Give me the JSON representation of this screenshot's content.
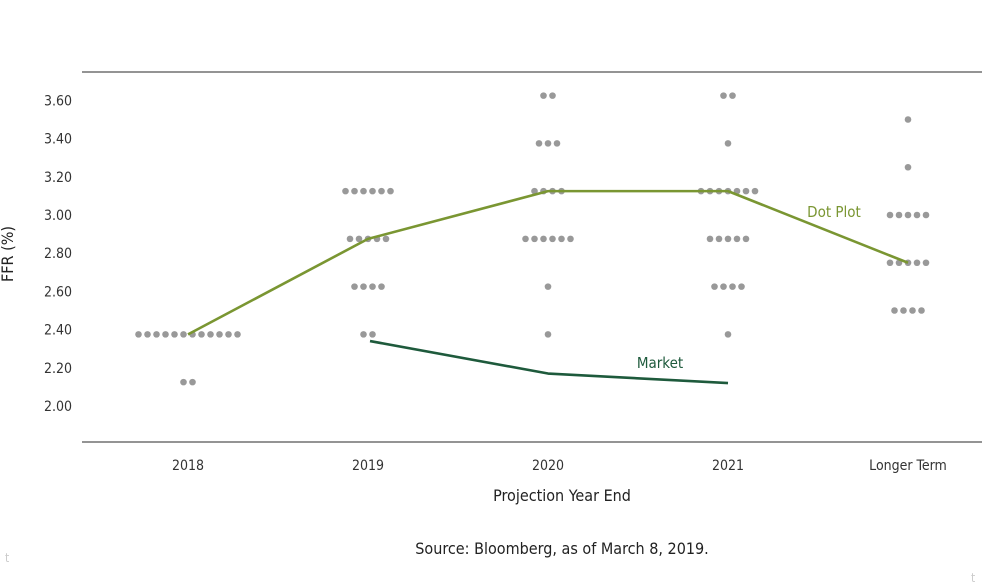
{
  "chart_data": {
    "type": "scatter",
    "title": "",
    "xlabel": "Projection Year End",
    "ylabel": "FFR (%)",
    "categories": [
      "2018",
      "2019",
      "2020",
      "2021",
      "Longer Term"
    ],
    "y_ticks": [
      "3.60",
      "3.40",
      "3.20",
      "3.00",
      "2.80",
      "2.60",
      "2.40",
      "2.20",
      "2.00"
    ],
    "ylim": [
      1.8,
      3.75
    ],
    "grid": false,
    "dots": [
      {
        "category": "2018",
        "levels": [
          {
            "y": 2.375,
            "count": 12
          },
          {
            "y": 2.125,
            "count": 2
          }
        ]
      },
      {
        "category": "2019",
        "levels": [
          {
            "y": 3.125,
            "count": 6
          },
          {
            "y": 2.875,
            "count": 5
          },
          {
            "y": 2.625,
            "count": 4
          },
          {
            "y": 2.375,
            "count": 2
          }
        ]
      },
      {
        "category": "2020",
        "levels": [
          {
            "y": 3.625,
            "count": 2
          },
          {
            "y": 3.375,
            "count": 3
          },
          {
            "y": 3.125,
            "count": 4
          },
          {
            "y": 2.875,
            "count": 6
          },
          {
            "y": 2.625,
            "count": 1
          },
          {
            "y": 2.375,
            "count": 1
          }
        ]
      },
      {
        "category": "2021",
        "levels": [
          {
            "y": 3.625,
            "count": 2
          },
          {
            "y": 3.375,
            "count": 1
          },
          {
            "y": 3.125,
            "count": 7
          },
          {
            "y": 2.875,
            "count": 5
          },
          {
            "y": 2.625,
            "count": 4
          },
          {
            "y": 2.375,
            "count": 1
          }
        ]
      },
      {
        "category": "Longer Term",
        "levels": [
          {
            "y": 3.5,
            "count": 1
          },
          {
            "y": 3.25,
            "count": 1
          },
          {
            "y": 3.0,
            "count": 5
          },
          {
            "y": 2.75,
            "count": 5
          },
          {
            "y": 2.5,
            "count": 4
          }
        ]
      }
    ],
    "series": [
      {
        "name": "Dot Plot",
        "color": "#7a9632",
        "points": [
          {
            "x": "2018",
            "y": 2.375
          },
          {
            "x": "2019",
            "y": 2.875
          },
          {
            "x": "2020",
            "y": 3.125
          },
          {
            "x": "2021",
            "y": 3.125
          },
          {
            "x": "Longer Term",
            "y": 2.75
          }
        ]
      },
      {
        "name": "Market",
        "color": "#1e5a3c",
        "points": [
          {
            "x": "2019",
            "y": 2.34
          },
          {
            "x": "2020",
            "y": 2.17
          },
          {
            "x": "2021",
            "y": 2.12
          }
        ]
      }
    ],
    "dot_color": "#999999",
    "axis_color": "#555555"
  },
  "source": "Source: Bloomberg, as of March 8, 2019.",
  "corner_marks": [
    "t",
    "t"
  ]
}
